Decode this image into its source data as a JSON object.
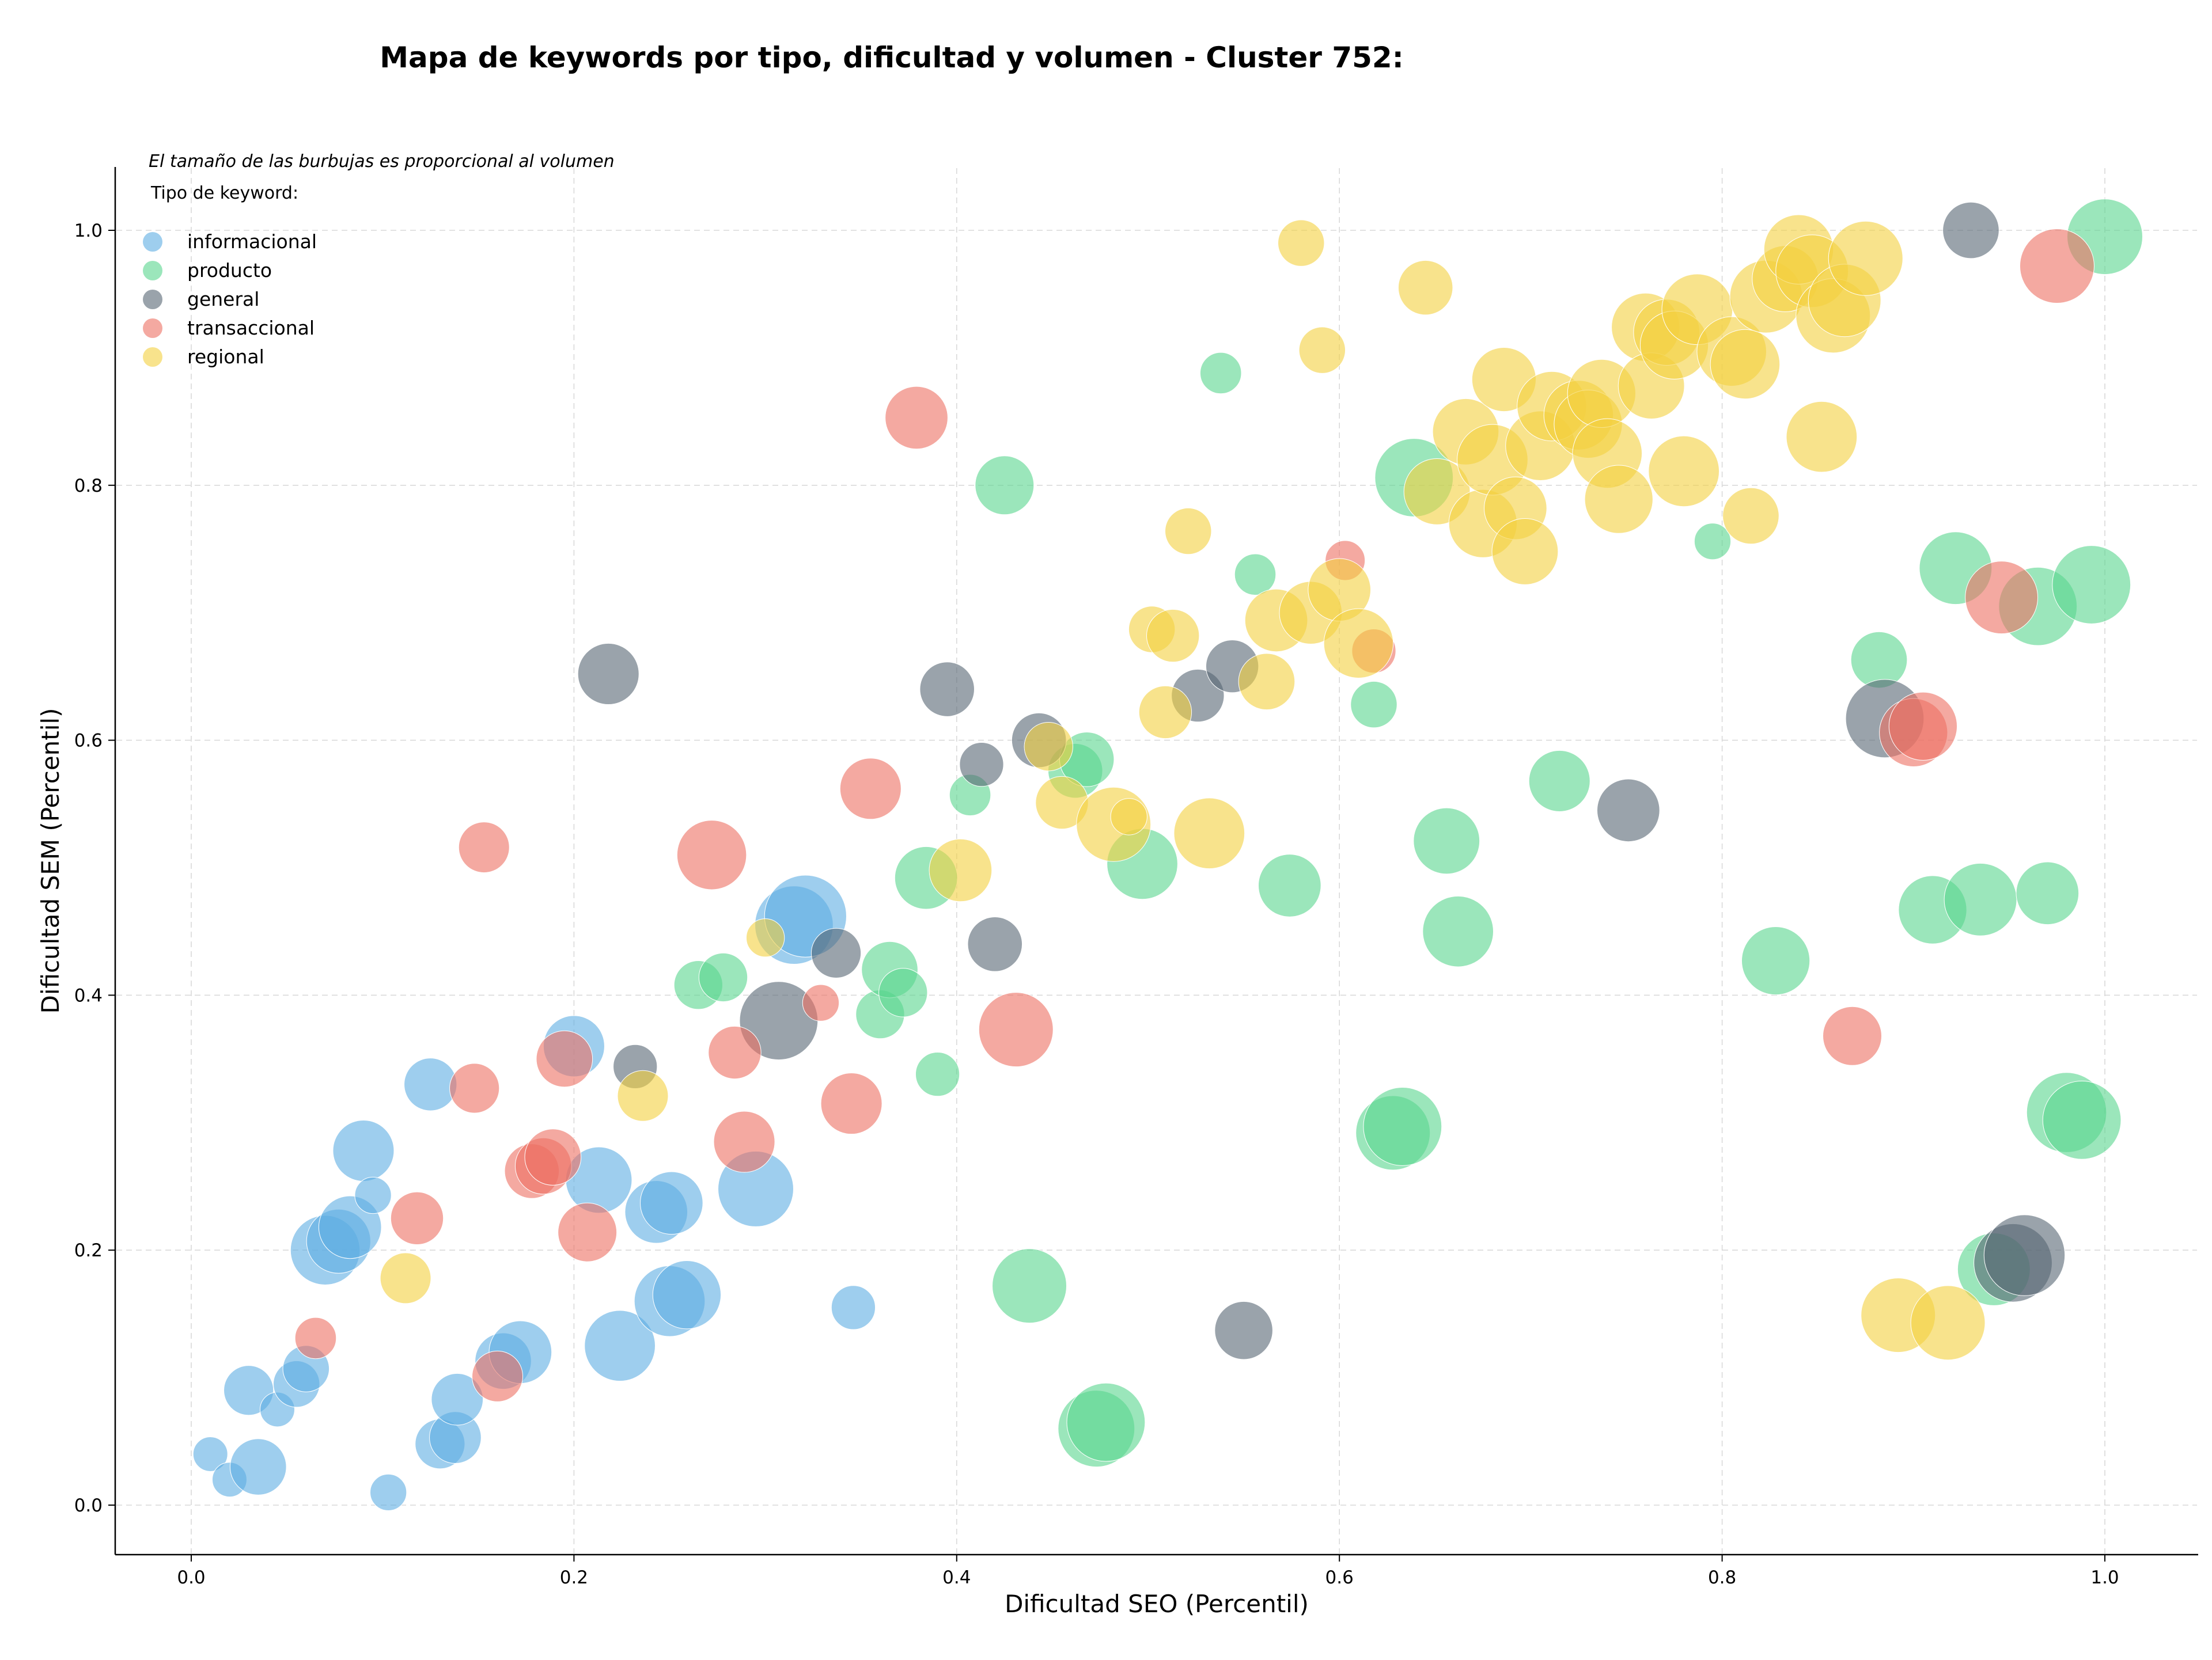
{
  "chart_data": {
    "type": "scatter",
    "title": "Mapa de keywords por tipo, dificultad y volumen - Cluster 752:",
    "xlabel": "Dificultad SEO (Percentil)",
    "ylabel": "Dificultad SEM (Percentil)",
    "xlim": [
      -0.04,
      1.05
    ],
    "ylim": [
      -0.04,
      1.05
    ],
    "xticks": [
      "0.0",
      "0.2",
      "0.4",
      "0.6",
      "0.8",
      "1.0"
    ],
    "yticks": [
      "0.0",
      "0.2",
      "0.4",
      "0.6",
      "0.8",
      "1.0"
    ],
    "grid": true,
    "legend_title": "Tipo de keyword:",
    "legend_note": "El tamaño de las burbujas es proporcional al volumen",
    "legend_placement": "top-left",
    "size_note": "bubble size proportional to volume; third value of each point is relative volume (0-1)",
    "series": [
      {
        "name": "informacional",
        "color": "#5dade2",
        "points": [
          [
            0.01,
            0.04,
            0.04
          ],
          [
            0.02,
            0.02,
            0.04
          ],
          [
            0.03,
            0.09,
            0.15
          ],
          [
            0.035,
            0.03,
            0.22
          ],
          [
            0.045,
            0.075,
            0.04
          ],
          [
            0.055,
            0.095,
            0.12
          ],
          [
            0.06,
            0.107,
            0.12
          ],
          [
            0.07,
            0.2,
            0.4
          ],
          [
            0.077,
            0.207,
            0.32
          ],
          [
            0.083,
            0.218,
            0.3
          ],
          [
            0.09,
            0.278,
            0.28
          ],
          [
            0.095,
            0.243,
            0.05
          ],
          [
            0.103,
            0.01,
            0.05
          ],
          [
            0.125,
            0.33,
            0.18
          ],
          [
            0.13,
            0.048,
            0.15
          ],
          [
            0.138,
            0.053,
            0.17
          ],
          [
            0.139,
            0.083,
            0.17
          ],
          [
            0.163,
            0.113,
            0.22
          ],
          [
            0.172,
            0.12,
            0.3
          ],
          [
            0.2,
            0.36,
            0.28
          ],
          [
            0.213,
            0.255,
            0.35
          ],
          [
            0.224,
            0.125,
            0.42
          ],
          [
            0.243,
            0.23,
            0.3
          ],
          [
            0.25,
            0.16,
            0.42
          ],
          [
            0.251,
            0.237,
            0.3
          ],
          [
            0.259,
            0.165,
            0.38
          ],
          [
            0.295,
            0.248,
            0.5
          ],
          [
            0.315,
            0.455,
            0.55
          ],
          [
            0.321,
            0.462,
            0.62
          ],
          [
            0.346,
            0.155,
            0.1
          ]
        ]
      },
      {
        "name": "producto",
        "color": "#58d68d",
        "points": [
          [
            0.265,
            0.408,
            0.14
          ],
          [
            0.278,
            0.414,
            0.14
          ],
          [
            0.36,
            0.385,
            0.14
          ],
          [
            0.365,
            0.42,
            0.22
          ],
          [
            0.372,
            0.402,
            0.14
          ],
          [
            0.384,
            0.492,
            0.3
          ],
          [
            0.39,
            0.338,
            0.1
          ],
          [
            0.407,
            0.557,
            0.08
          ],
          [
            0.425,
            0.8,
            0.25
          ],
          [
            0.438,
            0.172,
            0.48
          ],
          [
            0.462,
            0.576,
            0.2
          ],
          [
            0.468,
            0.585,
            0.2
          ],
          [
            0.473,
            0.06,
            0.52
          ],
          [
            0.478,
            0.065,
            0.55
          ],
          [
            0.497,
            0.503,
            0.42
          ],
          [
            0.538,
            0.888,
            0.08
          ],
          [
            0.556,
            0.73,
            0.08
          ],
          [
            0.574,
            0.486,
            0.3
          ],
          [
            0.618,
            0.628,
            0.12
          ],
          [
            0.628,
            0.292,
            0.48
          ],
          [
            0.633,
            0.297,
            0.55
          ],
          [
            0.639,
            0.806,
            0.55
          ],
          [
            0.656,
            0.521,
            0.35
          ],
          [
            0.662,
            0.45,
            0.42
          ],
          [
            0.715,
            0.568,
            0.28
          ],
          [
            0.795,
            0.756,
            0.05
          ],
          [
            0.828,
            0.427,
            0.38
          ],
          [
            0.882,
            0.663,
            0.22
          ],
          [
            0.91,
            0.467,
            0.38
          ],
          [
            0.922,
            0.735,
            0.45
          ],
          [
            0.935,
            0.475,
            0.45
          ],
          [
            0.942,
            0.185,
            0.45
          ],
          [
            0.965,
            0.705,
            0.55
          ],
          [
            0.97,
            0.48,
            0.3
          ],
          [
            0.98,
            0.308,
            0.58
          ],
          [
            0.988,
            0.302,
            0.55
          ],
          [
            0.993,
            0.722,
            0.55
          ],
          [
            1.0,
            0.995,
            0.5
          ]
        ]
      },
      {
        "name": "general",
        "color": "#566573",
        "points": [
          [
            0.218,
            0.652,
            0.28
          ],
          [
            0.232,
            0.344,
            0.1
          ],
          [
            0.307,
            0.38,
            0.55
          ],
          [
            0.337,
            0.433,
            0.15
          ],
          [
            0.395,
            0.64,
            0.2
          ],
          [
            0.413,
            0.581,
            0.1
          ],
          [
            0.42,
            0.44,
            0.2
          ],
          [
            0.443,
            0.6,
            0.2
          ],
          [
            0.526,
            0.635,
            0.18
          ],
          [
            0.544,
            0.658,
            0.18
          ],
          [
            0.55,
            0.137,
            0.24
          ],
          [
            0.751,
            0.545,
            0.3
          ],
          [
            0.93,
            1.0,
            0.22
          ],
          [
            0.885,
            0.617,
            0.55
          ],
          [
            0.952,
            0.19,
            0.55
          ],
          [
            0.958,
            0.196,
            0.6
          ]
        ]
      },
      {
        "name": "transaccional",
        "color": "#ec7063",
        "points": [
          [
            0.065,
            0.131,
            0.08
          ],
          [
            0.118,
            0.225,
            0.18
          ],
          [
            0.148,
            0.327,
            0.15
          ],
          [
            0.153,
            0.516,
            0.16
          ],
          [
            0.16,
            0.101,
            0.16
          ],
          [
            0.178,
            0.262,
            0.2
          ],
          [
            0.184,
            0.266,
            0.22
          ],
          [
            0.189,
            0.273,
            0.22
          ],
          [
            0.195,
            0.35,
            0.22
          ],
          [
            0.207,
            0.214,
            0.25
          ],
          [
            0.272,
            0.51,
            0.4
          ],
          [
            0.284,
            0.355,
            0.18
          ],
          [
            0.289,
            0.285,
            0.28
          ],
          [
            0.329,
            0.394,
            0.05
          ],
          [
            0.345,
            0.315,
            0.28
          ],
          [
            0.355,
            0.562,
            0.28
          ],
          [
            0.379,
            0.853,
            0.3
          ],
          [
            0.431,
            0.373,
            0.48
          ],
          [
            0.603,
            0.741,
            0.07
          ],
          [
            0.618,
            0.67,
            0.1
          ],
          [
            0.868,
            0.368,
            0.25
          ],
          [
            0.9,
            0.606,
            0.38
          ],
          [
            0.905,
            0.611,
            0.38
          ],
          [
            0.946,
            0.712,
            0.45
          ],
          [
            0.975,
            0.972,
            0.48
          ]
        ]
      },
      {
        "name": "regional",
        "color": "#f4d03f",
        "points": [
          [
            0.112,
            0.178,
            0.16
          ],
          [
            0.236,
            0.321,
            0.16
          ],
          [
            0.3,
            0.445,
            0.06
          ],
          [
            0.402,
            0.498,
            0.3
          ],
          [
            0.448,
            0.595,
            0.14
          ],
          [
            0.455,
            0.551,
            0.18
          ],
          [
            0.482,
            0.534,
            0.48
          ],
          [
            0.49,
            0.54,
            0.05
          ],
          [
            0.502,
            0.687,
            0.12
          ],
          [
            0.509,
            0.622,
            0.18
          ],
          [
            0.513,
            0.682,
            0.18
          ],
          [
            0.521,
            0.764,
            0.12
          ],
          [
            0.532,
            0.527,
            0.42
          ],
          [
            0.562,
            0.646,
            0.22
          ],
          [
            0.567,
            0.694,
            0.3
          ],
          [
            0.58,
            0.99,
            0.12
          ],
          [
            0.585,
            0.7,
            0.3
          ],
          [
            0.591,
            0.906,
            0.12
          ],
          [
            0.6,
            0.718,
            0.3
          ],
          [
            0.61,
            0.676,
            0.4
          ],
          [
            0.645,
            0.955,
            0.2
          ],
          [
            0.651,
            0.795,
            0.35
          ],
          [
            0.666,
            0.842,
            0.35
          ],
          [
            0.675,
            0.77,
            0.38
          ],
          [
            0.68,
            0.82,
            0.42
          ],
          [
            0.686,
            0.883,
            0.32
          ],
          [
            0.692,
            0.782,
            0.3
          ],
          [
            0.697,
            0.748,
            0.35
          ],
          [
            0.705,
            0.831,
            0.4
          ],
          [
            0.711,
            0.862,
            0.4
          ],
          [
            0.725,
            0.855,
            0.4
          ],
          [
            0.73,
            0.848,
            0.38
          ],
          [
            0.737,
            0.872,
            0.38
          ],
          [
            0.74,
            0.825,
            0.4
          ],
          [
            0.746,
            0.789,
            0.38
          ],
          [
            0.76,
            0.924,
            0.38
          ],
          [
            0.763,
            0.878,
            0.35
          ],
          [
            0.771,
            0.92,
            0.35
          ],
          [
            0.775,
            0.91,
            0.38
          ],
          [
            0.78,
            0.811,
            0.42
          ],
          [
            0.787,
            0.938,
            0.42
          ],
          [
            0.805,
            0.905,
            0.4
          ],
          [
            0.812,
            0.895,
            0.4
          ],
          [
            0.815,
            0.776,
            0.22
          ],
          [
            0.823,
            0.948,
            0.45
          ],
          [
            0.833,
            0.962,
            0.35
          ],
          [
            0.84,
            0.985,
            0.4
          ],
          [
            0.847,
            0.968,
            0.45
          ],
          [
            0.852,
            0.838,
            0.42
          ],
          [
            0.858,
            0.933,
            0.48
          ],
          [
            0.864,
            0.945,
            0.45
          ],
          [
            0.875,
            0.978,
            0.48
          ],
          [
            0.892,
            0.149,
            0.48
          ],
          [
            0.918,
            0.143,
            0.48
          ]
        ]
      }
    ]
  }
}
